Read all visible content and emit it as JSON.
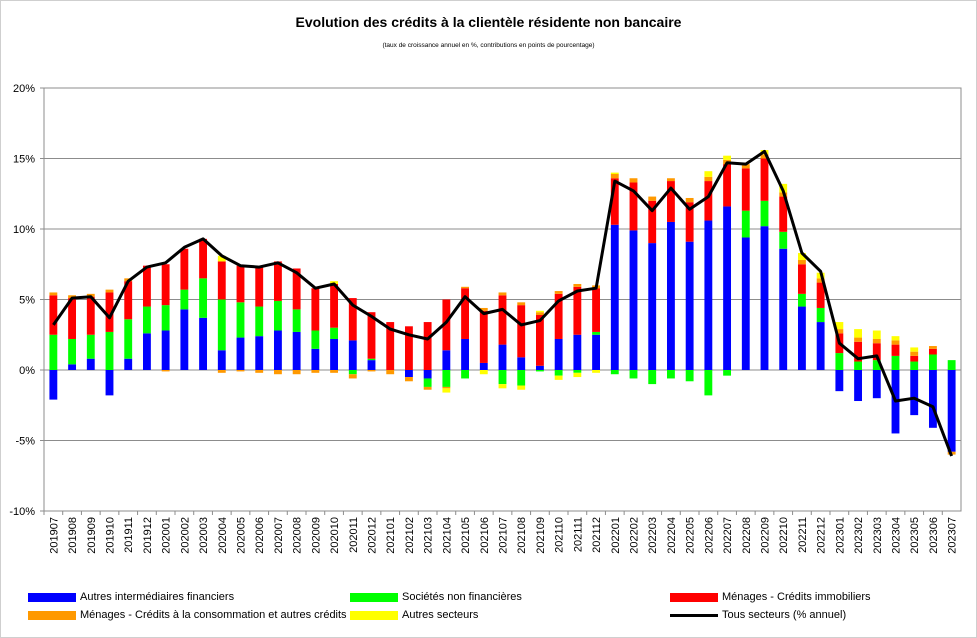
{
  "chart_data": {
    "type": "bar",
    "stacked": true,
    "title": "Evolution des crédits à la clientèle résidente non bancaire",
    "subtitle": "(taux de croissance annuel en %, contributions en points de pourcentage)",
    "xlabel": "",
    "ylabel": "",
    "ylim": [
      -10,
      20
    ],
    "yticks": [
      -10,
      -5,
      0,
      5,
      10,
      15,
      20
    ],
    "ytick_labels": [
      "-10%",
      "-5%",
      "0%",
      "5%",
      "10%",
      "15%",
      "20%"
    ],
    "grid": true,
    "legend_position": "bottom",
    "categories": [
      "201907",
      "201908",
      "201909",
      "201910",
      "201911",
      "201912",
      "202001",
      "202002",
      "202003",
      "202004",
      "202005",
      "202006",
      "202007",
      "202008",
      "202009",
      "202010",
      "202011",
      "202012",
      "202101",
      "202102",
      "202103",
      "202104",
      "202105",
      "202106",
      "202107",
      "202108",
      "202109",
      "202110",
      "202111",
      "202112",
      "202201",
      "202202",
      "202203",
      "202204",
      "202205",
      "202206",
      "202207",
      "202208",
      "202209",
      "202210",
      "202211",
      "202212",
      "202301",
      "202302",
      "202303",
      "202304",
      "202305",
      "202306",
      "202307"
    ],
    "series": [
      {
        "name": "Autres intermédiaires financiers",
        "color": "#0000ff",
        "values": [
          -2.1,
          0.4,
          0.8,
          -1.8,
          0.8,
          2.6,
          2.8,
          4.3,
          3.7,
          1.4,
          2.3,
          2.4,
          2.8,
          2.7,
          1.5,
          2.2,
          2.1,
          0.7,
          0.0,
          -0.5,
          -0.6,
          1.4,
          2.2,
          0.5,
          1.8,
          0.9,
          0.3,
          2.2,
          2.5,
          2.5,
          10.3,
          9.9,
          9.0,
          10.5,
          9.1,
          10.6,
          11.6,
          9.4,
          10.2,
          8.6,
          4.5,
          3.4,
          -1.5,
          -2.2,
          -2.0,
          -4.5,
          -3.2,
          -4.1,
          -5.8
        ]
      },
      {
        "name": "Sociétés non financières",
        "color": "#00ff00",
        "values": [
          2.5,
          1.8,
          1.7,
          2.7,
          2.8,
          1.9,
          1.8,
          1.4,
          2.8,
          3.6,
          2.5,
          2.1,
          2.1,
          1.6,
          1.3,
          0.8,
          -0.3,
          0.1,
          0.0,
          0.0,
          -0.6,
          -1.2,
          -0.6,
          0.0,
          -1.0,
          -1.1,
          -0.1,
          -0.4,
          -0.2,
          0.2,
          -0.3,
          -0.6,
          -1.0,
          -0.6,
          -0.8,
          -1.8,
          -0.4,
          1.9,
          1.8,
          1.2,
          0.9,
          1.0,
          1.2,
          0.6,
          0.7,
          1.0,
          0.6,
          1.1,
          0.7
        ]
      },
      {
        "name": "Ménages - Crédits immobiliers",
        "color": "#ff0000",
        "values": [
          2.8,
          2.9,
          2.7,
          2.8,
          2.7,
          2.9,
          2.9,
          2.9,
          2.8,
          2.7,
          2.6,
          2.8,
          2.8,
          2.9,
          3.0,
          3.1,
          3.0,
          3.3,
          3.4,
          3.1,
          3.4,
          3.6,
          3.6,
          3.7,
          3.5,
          3.7,
          3.6,
          3.2,
          3.4,
          3.1,
          3.3,
          3.4,
          3.0,
          2.9,
          2.8,
          2.8,
          3.0,
          3.0,
          3.0,
          2.5,
          2.1,
          1.8,
          1.4,
          1.4,
          1.2,
          0.8,
          0.4,
          0.4,
          0.0
        ]
      },
      {
        "name": "Ménages - Crédits à la consommation et autres crédits",
        "color": "#ff9900",
        "values": [
          0.2,
          0.2,
          0.2,
          0.2,
          0.2,
          0.0,
          -0.1,
          0.0,
          0.0,
          -0.2,
          -0.1,
          -0.2,
          -0.3,
          -0.3,
          -0.2,
          -0.2,
          -0.3,
          -0.1,
          -0.3,
          -0.3,
          -0.2,
          -0.1,
          0.1,
          0.2,
          0.2,
          0.2,
          0.2,
          0.2,
          0.2,
          0.2,
          0.3,
          0.3,
          0.3,
          0.2,
          0.3,
          0.3,
          0.3,
          0.3,
          0.3,
          0.3,
          0.3,
          0.3,
          0.3,
          0.3,
          0.3,
          0.3,
          0.3,
          0.2,
          -0.2
        ]
      },
      {
        "name": "Autres secteurs",
        "color": "#ffff00",
        "values": [
          0.0,
          0.0,
          0.0,
          0.0,
          0.0,
          0.0,
          0.0,
          0.0,
          0.0,
          0.4,
          0.0,
          0.0,
          0.0,
          0.0,
          0.0,
          0.2,
          0.0,
          0.0,
          0.0,
          0.0,
          0.0,
          -0.3,
          0.0,
          -0.3,
          -0.3,
          -0.3,
          0.1,
          -0.3,
          -0.3,
          -0.2,
          0.1,
          0.0,
          0.0,
          0.0,
          0.0,
          0.4,
          0.3,
          0.0,
          0.3,
          0.6,
          0.5,
          0.4,
          0.5,
          0.6,
          0.6,
          0.3,
          0.3,
          0.0,
          0.0
        ]
      },
      {
        "name": "Tous secteurs (% annuel)",
        "color": "#000000",
        "kind": "line",
        "values": [
          3.2,
          5.1,
          5.2,
          3.7,
          6.3,
          7.3,
          7.6,
          8.7,
          9.3,
          8.1,
          7.4,
          7.3,
          7.6,
          6.9,
          5.8,
          6.1,
          4.6,
          3.8,
          2.9,
          2.5,
          2.2,
          3.4,
          5.2,
          4.0,
          4.3,
          3.2,
          3.5,
          4.9,
          5.6,
          5.8,
          13.4,
          12.7,
          11.3,
          12.9,
          11.4,
          12.3,
          14.7,
          14.6,
          15.5,
          12.7,
          8.3,
          7.0,
          1.9,
          0.8,
          1.0,
          -2.2,
          -2.0,
          -2.6,
          -6.1
        ]
      }
    ]
  }
}
